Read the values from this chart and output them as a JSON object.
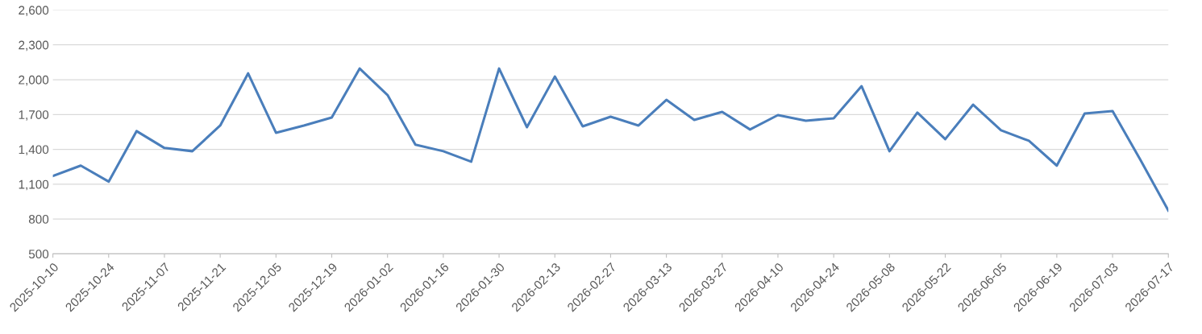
{
  "chart_data": {
    "type": "line",
    "x": [
      "2025-10-10",
      "2025-10-17",
      "2025-10-24",
      "2025-10-31",
      "2025-11-07",
      "2025-11-14",
      "2025-11-21",
      "2025-11-28",
      "2025-12-05",
      "2025-12-12",
      "2025-12-19",
      "2025-12-26",
      "2026-01-02",
      "2026-01-09",
      "2026-01-16",
      "2026-01-23",
      "2026-01-30",
      "2026-02-06",
      "2026-02-13",
      "2026-02-20",
      "2026-02-27",
      "2026-03-06",
      "2026-03-13",
      "2026-03-20",
      "2026-03-27",
      "2026-04-03",
      "2026-04-10",
      "2026-04-17",
      "2026-04-24",
      "2026-05-01",
      "2026-05-08",
      "2026-05-15",
      "2026-05-22",
      "2026-05-29",
      "2026-06-05",
      "2026-06-12",
      "2026-06-19",
      "2026-06-26",
      "2026-07-03",
      "2026-07-10",
      "2026-07-17"
    ],
    "series": [
      {
        "color": "#4a7ebb",
        "values": [
          1170,
          1260,
          1122,
          1557,
          1412,
          1384,
          1605,
          2054,
          1543,
          1605,
          1674,
          2096,
          1868,
          1440,
          1384,
          1294,
          2096,
          1591,
          2027,
          1598,
          1681,
          1605,
          1826,
          1654,
          1723,
          1571,
          1695,
          1647,
          1667,
          1944,
          1384,
          1716,
          1488,
          1785,
          1564,
          1474,
          1260,
          1709,
          1730,
          1308,
          873
        ]
      }
    ],
    "xlim": [
      "2025-10-10",
      "2026-07-17"
    ],
    "xticks": [
      "2025-10-10",
      "2025-10-24",
      "2025-11-07",
      "2025-11-21",
      "2025-12-05",
      "2025-12-19",
      "2026-01-02",
      "2026-01-16",
      "2026-01-30",
      "2026-02-13",
      "2026-02-27",
      "2026-03-13",
      "2026-03-27",
      "2026-04-10",
      "2026-04-24",
      "2026-05-08",
      "2026-05-22",
      "2026-06-05",
      "2026-06-19",
      "2026-07-03",
      "2026-07-17"
    ],
    "ylim": [
      500,
      2600
    ],
    "yticks": [
      {
        "value": 500,
        "label": "500"
      },
      {
        "value": 800,
        "label": "800"
      },
      {
        "value": 1100,
        "label": "1,100"
      },
      {
        "value": 1400,
        "label": "1,400"
      },
      {
        "value": 1700,
        "label": "1,700"
      },
      {
        "value": 2000,
        "label": "2,000"
      },
      {
        "value": 2300,
        "label": "2,300"
      },
      {
        "value": 2600,
        "label": "2,600"
      }
    ],
    "grid": "y",
    "legend": false,
    "marker": "none",
    "line_style": "solid"
  }
}
